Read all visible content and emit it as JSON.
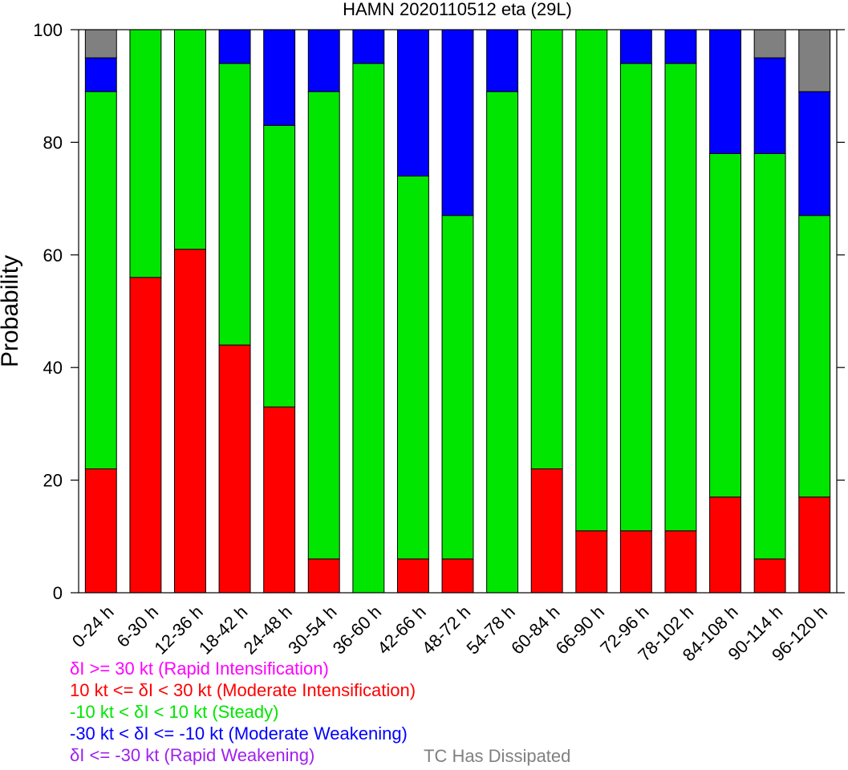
{
  "chart_data": {
    "type": "bar",
    "stacked": true,
    "title": "HAMN 2020110512 eta (29L)",
    "ylabel": "Probability",
    "xlabel": "",
    "ylim": [
      0,
      100
    ],
    "yticks": [
      0,
      20,
      40,
      60,
      80,
      100
    ],
    "categories": [
      "0-24 h",
      "6-30 h",
      "12-36 h",
      "18-42 h",
      "24-48 h",
      "30-54 h",
      "36-60 h",
      "42-66 h",
      "48-72 h",
      "54-78 h",
      "60-84 h",
      "66-90 h",
      "72-96 h",
      "78-102 h",
      "84-108 h",
      "90-114 h",
      "96-120 h"
    ],
    "series": [
      {
        "key": "rapid_intensification",
        "color": "#ff00ff",
        "values": [
          0,
          0,
          0,
          0,
          0,
          0,
          0,
          0,
          0,
          0,
          0,
          0,
          0,
          0,
          0,
          0,
          0
        ]
      },
      {
        "key": "moderate_intensification",
        "color": "#ff0000",
        "values": [
          22,
          56,
          61,
          44,
          33,
          6,
          0,
          6,
          6,
          0,
          22,
          11,
          11,
          11,
          17,
          6,
          17
        ]
      },
      {
        "key": "steady",
        "color": "#00e600",
        "values": [
          67,
          44,
          39,
          50,
          50,
          83,
          94,
          68,
          61,
          89,
          78,
          89,
          83,
          83,
          61,
          72,
          50
        ]
      },
      {
        "key": "moderate_weakening",
        "color": "#0000ff",
        "values": [
          6,
          0,
          0,
          6,
          17,
          11,
          6,
          26,
          33,
          11,
          0,
          0,
          6,
          6,
          22,
          17,
          22
        ]
      },
      {
        "key": "rapid_weakening",
        "color": "#a020f0",
        "values": [
          0,
          0,
          0,
          0,
          0,
          0,
          0,
          0,
          0,
          0,
          0,
          0,
          0,
          0,
          0,
          0,
          0
        ]
      },
      {
        "key": "dissipated",
        "color": "#808080",
        "values": [
          5,
          0,
          0,
          0,
          0,
          0,
          0,
          0,
          0,
          0,
          0,
          0,
          0,
          0,
          0,
          5,
          11
        ]
      }
    ],
    "legend": {
      "placement": "bottom-left",
      "entries": [
        {
          "label": "δI >= 30 kt (Rapid Intensification)",
          "color": "#ff00ff"
        },
        {
          "label": "10 kt <= δI < 30 kt (Moderate Intensification)",
          "color": "#ff0000"
        },
        {
          "label": "-10 kt < δI < 10 kt (Steady)",
          "color": "#00e600"
        },
        {
          "label": "-30 kt < δI <= -10 kt (Moderate Weakening)",
          "color": "#0000ff"
        },
        {
          "label": "δI <= -30 kt (Rapid Weakening)",
          "color": "#a020f0"
        }
      ],
      "dissipated": {
        "label": "TC Has Dissipated",
        "color": "#808080"
      }
    }
  }
}
